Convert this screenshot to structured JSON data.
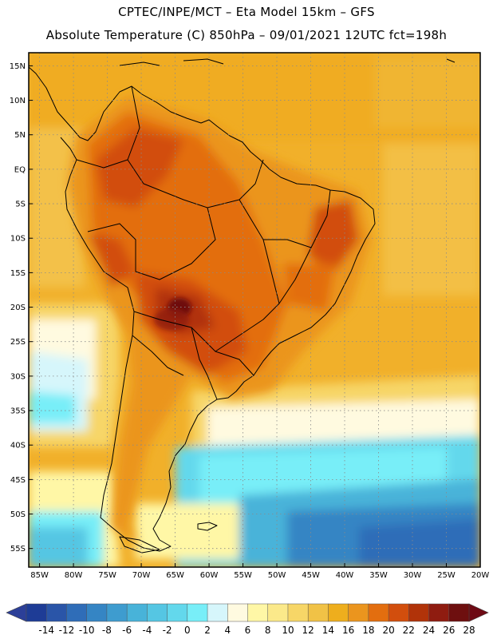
{
  "header": {
    "line1": "CPTEC/INPE/MCT –  Eta Model 15km – GFS",
    "line2": "Absolute Temperature (C) 850hPa – 09/01/2021 12UTC fct=198h"
  },
  "map": {
    "lat_labels": [
      "15N",
      "10N",
      "5N",
      "EQ",
      "5S",
      "10S",
      "15S",
      "20S",
      "25S",
      "30S",
      "35S",
      "40S",
      "45S",
      "50S",
      "55S"
    ],
    "lon_labels": [
      "85W",
      "80W",
      "75W",
      "70W",
      "65W",
      "60W",
      "55W",
      "50W",
      "45W",
      "40W",
      "35W",
      "30W",
      "25W",
      "20W"
    ],
    "lat_values": [
      15,
      10,
      5,
      0,
      -5,
      -10,
      -15,
      -20,
      -25,
      -30,
      -35,
      -40,
      -45,
      -50,
      -55
    ],
    "lon_values": [
      -85,
      -80,
      -75,
      -70,
      -65,
      -60,
      -55,
      -50,
      -45,
      -40,
      -35,
      -30,
      -25,
      -20
    ],
    "lat_range": [
      -57.7,
      16.9
    ],
    "lon_range": [
      -86.6,
      -20.0
    ]
  },
  "colorbar": {
    "ticks": [
      "-14",
      "-12",
      "-10",
      "-8",
      "-6",
      "-4",
      "-2",
      "0",
      "2",
      "4",
      "6",
      "8",
      "10",
      "12",
      "14",
      "16",
      "18",
      "20",
      "22",
      "24",
      "26",
      "28"
    ],
    "colors": [
      "#1e3c96",
      "#2a55a8",
      "#2f6db8",
      "#3585c4",
      "#3e9ccf",
      "#48b3d9",
      "#55c6e3",
      "#63d8ec",
      "#78eef8",
      "#d6f6fb",
      "#fffae0",
      "#fff7a6",
      "#fbe98a",
      "#f7d667",
      "#f1c246",
      "#eeae1d",
      "#eb951e",
      "#e36e0f",
      "#d24e0d",
      "#b13309",
      "#8f1c10",
      "#6e0f0f"
    ],
    "under_color": "#2c3f98",
    "over_color": "#6e0a14"
  }
}
